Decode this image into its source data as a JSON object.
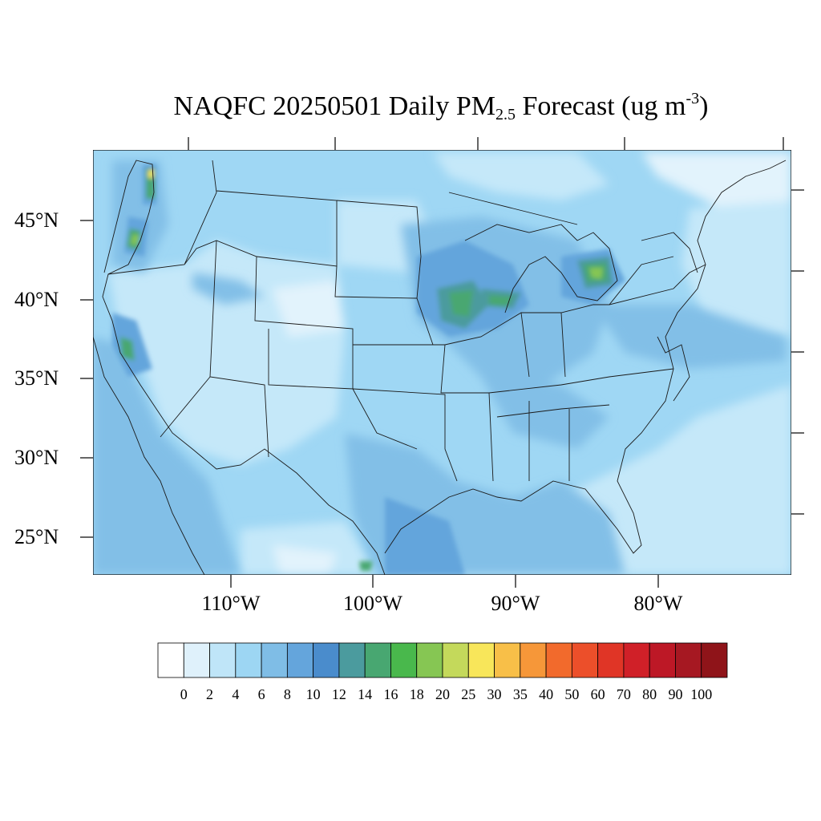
{
  "title": {
    "main": "NAQFC 20250501 Daily PM",
    "sub": "2.5",
    "rest": " Forecast (ug m",
    "sup": "-3",
    "close": ")"
  },
  "lat_labels": [
    "45°N",
    "40°N",
    "35°N",
    "30°N",
    "25°N"
  ],
  "lon_labels": [
    "110°W",
    "100°W",
    "90°W",
    "80°W"
  ],
  "colorbar": {
    "labels": [
      "0",
      "2",
      "4",
      "6",
      "8",
      "10",
      "12",
      "14",
      "16",
      "18",
      "20",
      "25",
      "30",
      "35",
      "40",
      "50",
      "60",
      "70",
      "80",
      "90",
      "100"
    ],
    "colors": [
      "#ffffff",
      "#dff1fb",
      "#bfe5f8",
      "#9dd6f3",
      "#7fbde6",
      "#64a5dc",
      "#4a8ccc",
      "#4b9b9e",
      "#48a771",
      "#49b84c",
      "#86c653",
      "#c4d95b",
      "#f8e65a",
      "#f8bf48",
      "#f69739",
      "#f26a2c",
      "#ec4f2a",
      "#e03526",
      "#d02028",
      "#bd1826",
      "#a61822",
      "#8f1419"
    ]
  },
  "colors": {
    "background": "#9fd7f4",
    "light": "#c5e8f9",
    "lighter": "#e2f3fc",
    "medium": "#82bfe7",
    "dark": "#64a5dc",
    "teal": "#4b9b9e",
    "green": "#48a771",
    "lime": "#86c653",
    "yellow": "#f8e65a",
    "boundary": "#1a1a1a"
  }
}
